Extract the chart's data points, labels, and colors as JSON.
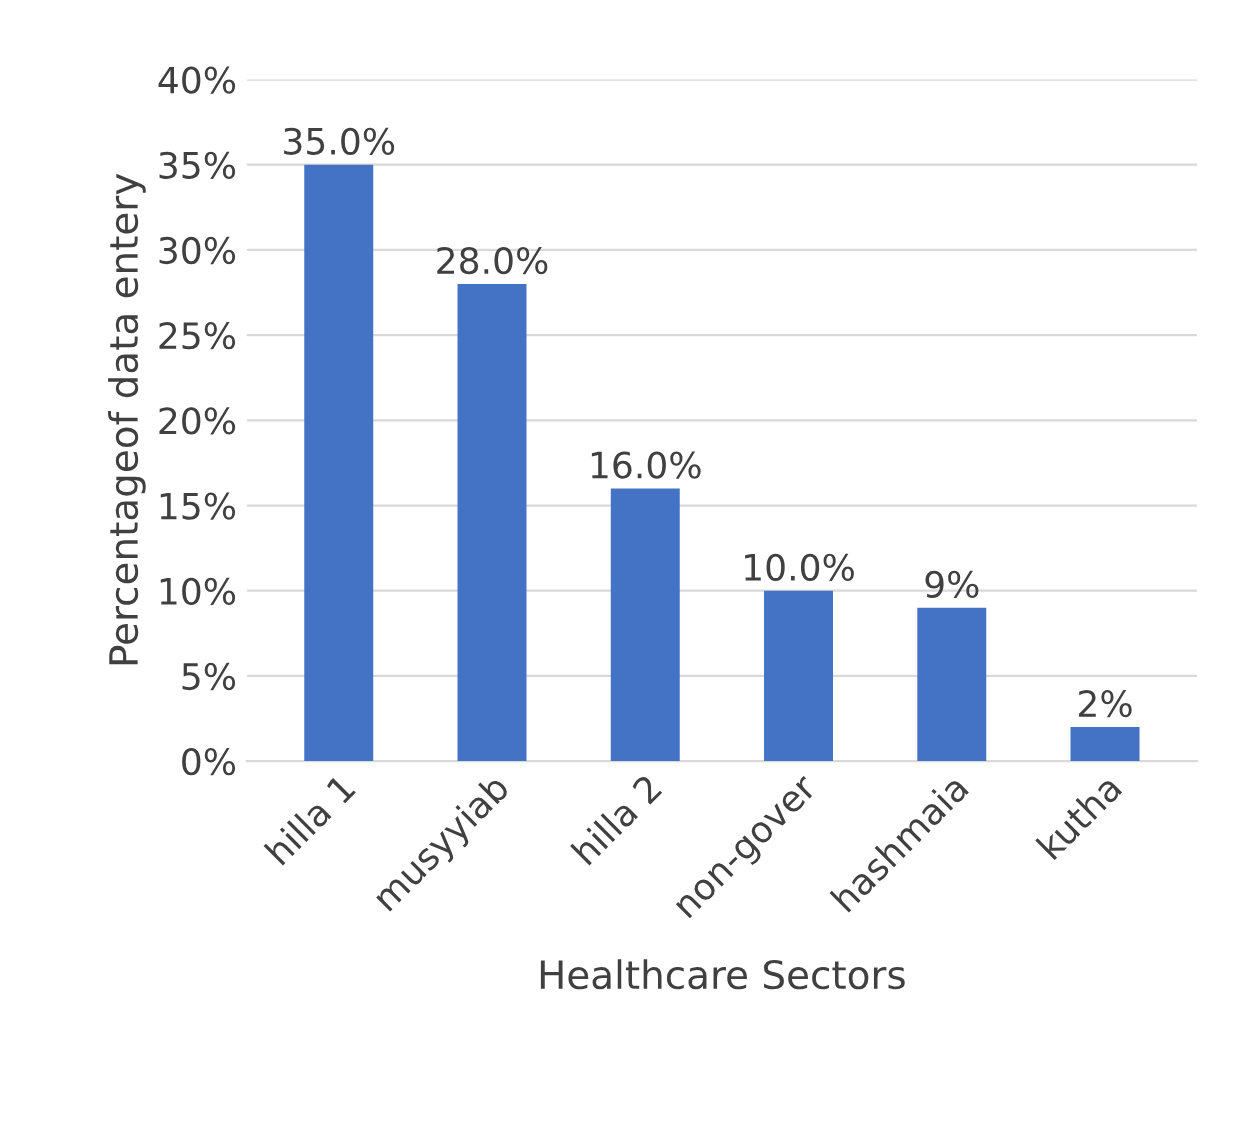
{
  "chart_data": {
    "type": "bar",
    "xlabel": "Healthcare Sectors",
    "ylabel": "Percentageof data entery",
    "categories": [
      "hilla 1",
      "musyyiab",
      "hilla 2",
      "non-gover",
      "hashmaia",
      "kutha"
    ],
    "values": [
      35,
      28,
      16,
      10,
      9,
      2
    ],
    "value_labels": [
      "35.0%",
      "28.0%",
      "16.0%",
      "10.0%",
      "9%",
      "2%"
    ],
    "color": "#4472c4",
    "ylim": [
      0,
      40
    ],
    "yticks": [
      {
        "value": 0,
        "label": "0%"
      },
      {
        "value": 5,
        "label": "5%"
      },
      {
        "value": 10,
        "label": "10%"
      },
      {
        "value": 15,
        "label": "15%"
      },
      {
        "value": 20,
        "label": "20%"
      },
      {
        "value": 25,
        "label": "25%"
      },
      {
        "value": 30,
        "label": "30%"
      },
      {
        "value": 35,
        "label": "35%"
      },
      {
        "value": 40,
        "label": "40%"
      }
    ],
    "grid": "y"
  }
}
